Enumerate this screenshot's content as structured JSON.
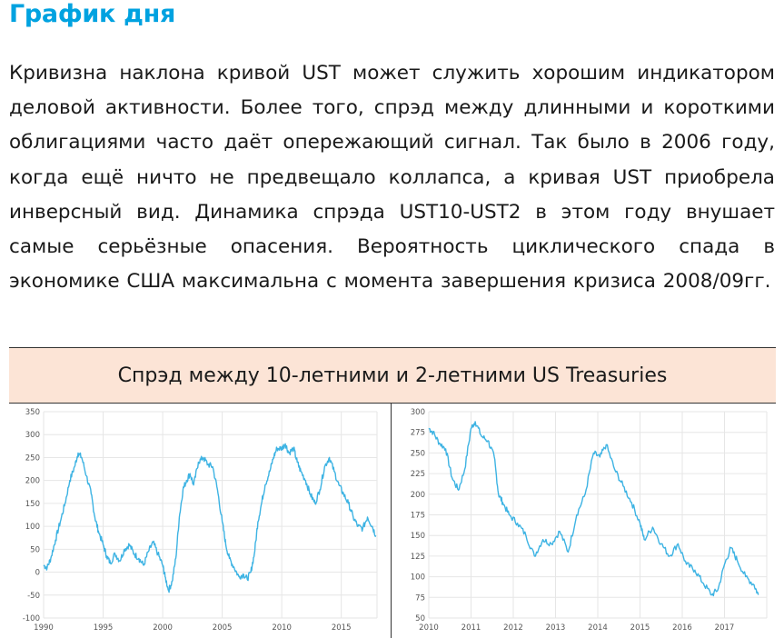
{
  "header": {
    "title": "График дня"
  },
  "paragraph": "Кривизна наклона кривой UST может служить хорошим индикатором деловой активности. Более того, спрэд между длинными и короткими облигациями часто даёт опережающий сигнал. Так было в 2006 году, когда ещё ничто не предвещало коллапса, а кривая UST приобрела инверсный вид. Динамика спрэда UST10-UST2 в этом году внушает самые серьёзные опасения. Вероятность циклического спада в экономике США максимальна с момента завершения кризиса 2008/09гг.",
  "banner": {
    "title": "Спрэд между 10-летними и 2-летними US Treasuries"
  },
  "colors": {
    "title": "#00a2e0",
    "line": "#3db3e3",
    "banner_bg": "#fce4d6",
    "grid": "#e6e6e6"
  },
  "chart_data": [
    {
      "type": "line",
      "title": "",
      "xlabel": "",
      "ylabel": "",
      "xlim": [
        1990,
        2018
      ],
      "ylim": [
        -100,
        350
      ],
      "yticks": [
        -100,
        -50,
        0,
        50,
        100,
        150,
        200,
        250,
        300,
        350
      ],
      "xticks": [
        1990,
        1995,
        2000,
        2005,
        2010,
        2015
      ],
      "grid": true,
      "series": [
        {
          "x": [
            1990.0,
            1990.3,
            1990.6,
            1991.0,
            1991.4,
            1991.8,
            1992.2,
            1992.6,
            1992.9,
            1993.2,
            1993.6,
            1994.0,
            1994.3,
            1994.6,
            1995.0,
            1995.3,
            1995.6,
            1996.0,
            1996.4,
            1996.8,
            1997.2,
            1997.6,
            1998.0,
            1998.4,
            1998.8,
            1999.2,
            1999.6,
            2000.0,
            2000.2,
            2000.5,
            2000.8,
            2001.1,
            2001.4,
            2001.7,
            2002.0,
            2002.3,
            2002.6,
            2003.0,
            2003.4,
            2003.8,
            2004.2,
            2004.6,
            2005.0,
            2005.3,
            2005.6,
            2006.0,
            2006.4,
            2006.8,
            2007.1,
            2007.4,
            2007.7,
            2008.0,
            2008.3,
            2008.6,
            2009.0,
            2009.3,
            2009.6,
            2010.0,
            2010.3,
            2010.6,
            2011.0,
            2011.3,
            2011.6,
            2012.0,
            2012.4,
            2012.8,
            2013.2,
            2013.6,
            2014.0,
            2014.4,
            2014.8,
            2015.2,
            2015.6,
            2016.0,
            2016.4,
            2016.8,
            2017.2,
            2017.6,
            2017.9
          ],
          "values": [
            15,
            10,
            30,
            70,
            110,
            150,
            200,
            230,
            260,
            250,
            210,
            170,
            120,
            90,
            60,
            35,
            20,
            40,
            25,
            50,
            60,
            40,
            30,
            15,
            45,
            65,
            40,
            15,
            -10,
            -40,
            -20,
            30,
            120,
            180,
            200,
            215,
            190,
            240,
            250,
            235,
            230,
            180,
            110,
            60,
            30,
            10,
            -10,
            -5,
            -15,
            0,
            40,
            110,
            150,
            190,
            220,
            250,
            270,
            270,
            280,
            260,
            270,
            240,
            220,
            200,
            170,
            150,
            180,
            230,
            250,
            220,
            190,
            170,
            150,
            120,
            100,
            95,
            120,
            100,
            80
          ]
        }
      ]
    },
    {
      "type": "line",
      "title": "",
      "xlabel": "",
      "ylabel": "",
      "xlim": [
        2010,
        2018
      ],
      "ylim": [
        50,
        300
      ],
      "yticks": [
        50,
        75,
        100,
        125,
        150,
        175,
        200,
        225,
        250,
        275,
        300
      ],
      "xticks": [
        2010,
        2011,
        2012,
        2013,
        2014,
        2015,
        2016,
        2017
      ],
      "grid": true,
      "series": [
        {
          "x": [
            2010.0,
            2010.1,
            2010.25,
            2010.4,
            2010.55,
            2010.7,
            2010.85,
            2011.0,
            2011.1,
            2011.25,
            2011.4,
            2011.55,
            2011.65,
            2011.75,
            2011.9,
            2012.1,
            2012.3,
            2012.5,
            2012.7,
            2012.9,
            2013.1,
            2013.3,
            2013.5,
            2013.7,
            2013.9,
            2014.05,
            2014.2,
            2014.4,
            2014.6,
            2014.8,
            2015.0,
            2015.1,
            2015.3,
            2015.5,
            2015.7,
            2015.9,
            2016.1,
            2016.3,
            2016.5,
            2016.7,
            2016.85,
            2017.0,
            2017.15,
            2017.3,
            2017.5,
            2017.7,
            2017.8
          ],
          "values": [
            280,
            275,
            262,
            255,
            220,
            205,
            230,
            280,
            288,
            270,
            265,
            245,
            200,
            190,
            175,
            165,
            150,
            125,
            145,
            140,
            155,
            130,
            175,
            200,
            250,
            245,
            260,
            230,
            210,
            190,
            165,
            145,
            160,
            140,
            125,
            140,
            115,
            108,
            92,
            78,
            85,
            115,
            135,
            120,
            100,
            90,
            78
          ]
        }
      ]
    }
  ]
}
